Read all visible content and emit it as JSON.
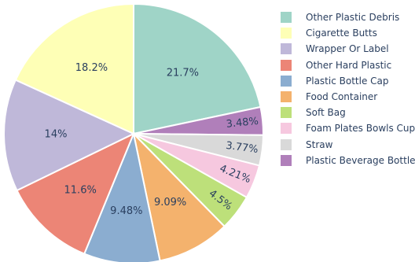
{
  "chart_data": {
    "type": "pie",
    "title": "",
    "direction": "clockwise",
    "start_angle_deg": 0,
    "slices": [
      {
        "label": "Other Plastic Debris",
        "value": 21.7,
        "text": "21.7%",
        "color": "#9fd4c7"
      },
      {
        "label": "Plastic Beverage Bottle",
        "value": 3.48,
        "text": "3.48%",
        "color": "#b07fba"
      },
      {
        "label": "Straw",
        "value": 3.77,
        "text": "3.77%",
        "color": "#d9d9d9"
      },
      {
        "label": "Foam Plates Bowls Cup",
        "value": 4.21,
        "text": "4.21%",
        "color": "#f6c8df"
      },
      {
        "label": "Soft Bag",
        "value": 4.5,
        "text": "4.5%",
        "color": "#bde07a"
      },
      {
        "label": "Food Container",
        "value": 9.09,
        "text": "9.09%",
        "color": "#f4b26d"
      },
      {
        "label": "Plastic Bottle Cap",
        "value": 9.48,
        "text": "9.48%",
        "color": "#8badd0"
      },
      {
        "label": "Other Hard Plastic",
        "value": 11.6,
        "text": "11.6%",
        "color": "#ec8576"
      },
      {
        "label": "Wrapper Or Label",
        "value": 14.0,
        "text": "14%",
        "color": "#bfb8d9"
      },
      {
        "label": "Cigarette Butts",
        "value": 18.2,
        "text": "18.2%",
        "color": "#feffb6"
      }
    ],
    "legend": {
      "position": "right",
      "entries": [
        {
          "label": "Other Plastic Debris",
          "color": "#9fd4c7"
        },
        {
          "label": "Cigarette Butts",
          "color": "#feffb6"
        },
        {
          "label": "Wrapper Or Label",
          "color": "#bfb8d9"
        },
        {
          "label": "Other Hard Plastic",
          "color": "#ec8576"
        },
        {
          "label": "Plastic Bottle Cap",
          "color": "#8badd0"
        },
        {
          "label": "Food Container",
          "color": "#f4b26d"
        },
        {
          "label": "Soft Bag",
          "color": "#bde07a"
        },
        {
          "label": "Foam Plates Bowls Cup",
          "color": "#f6c8df"
        },
        {
          "label": "Straw",
          "color": "#d9d9d9"
        },
        {
          "label": "Plastic Beverage Bottle",
          "color": "#b07fba"
        }
      ]
    }
  }
}
